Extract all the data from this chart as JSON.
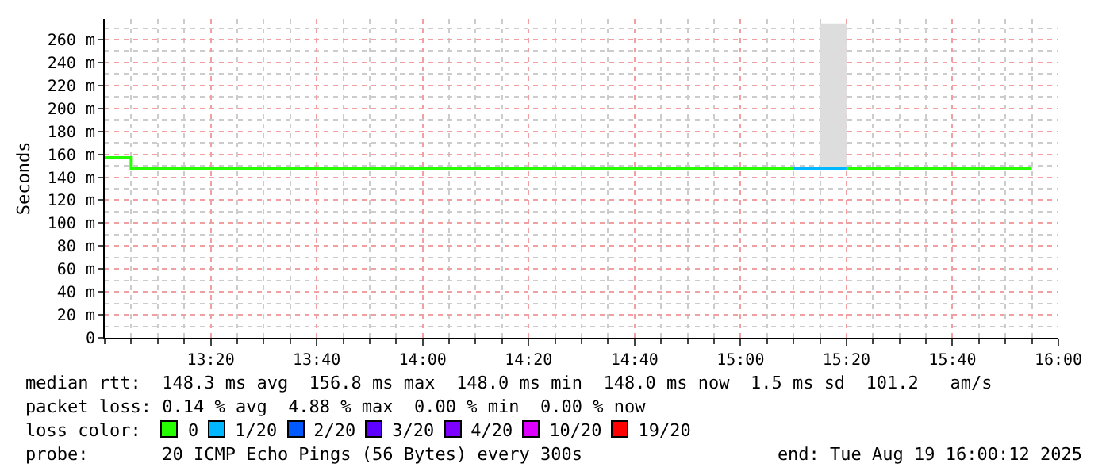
{
  "chart_data": {
    "type": "step",
    "ylabel": "Seconds",
    "legend_title": "loss color:",
    "legend": "bottom",
    "grid": true,
    "xlim": [
      "2025-08-19T13:00",
      "2025-08-19T16:00"
    ],
    "xticks": [
      {
        "value": "2025-08-19T13:20",
        "label": "13:20"
      },
      {
        "value": "2025-08-19T13:40",
        "label": "13:40"
      },
      {
        "value": "2025-08-19T14:00",
        "label": "14:00"
      },
      {
        "value": "2025-08-19T14:20",
        "label": "14:20"
      },
      {
        "value": "2025-08-19T14:40",
        "label": "14:40"
      },
      {
        "value": "2025-08-19T15:00",
        "label": "15:00"
      },
      {
        "value": "2025-08-19T15:20",
        "label": "15:20"
      },
      {
        "value": "2025-08-19T15:40",
        "label": "15:40"
      },
      {
        "value": "2025-08-19T16:00",
        "label": "16:00"
      }
    ],
    "ylim": [
      0,
      278
    ],
    "yticks": [
      0,
      {
        "value": 20,
        "label": "20 m"
      },
      {
        "value": 40,
        "label": "40 m"
      },
      {
        "value": 60,
        "label": "60 m"
      },
      {
        "value": 80,
        "label": "80 m"
      },
      {
        "value": 100,
        "label": "100 m"
      },
      {
        "value": 120,
        "label": "120 m"
      },
      {
        "value": 140,
        "label": "140 m"
      },
      {
        "value": 160,
        "label": "160 m"
      },
      {
        "value": 180,
        "label": "180 m"
      },
      {
        "value": 200,
        "label": "200 m"
      },
      {
        "value": 220,
        "label": "220 m"
      },
      {
        "value": 240,
        "label": "240 m"
      },
      {
        "value": 260,
        "label": "260 m"
      }
    ],
    "series": [
      {
        "name": "0",
        "color": "#26ff00",
        "x": [
          "2025-08-19T13:00",
          "2025-08-19T13:05",
          "2025-08-19T15:10",
          "2025-08-19T15:15",
          "2025-08-19T15:20",
          "2025-08-19T15:55"
        ],
        "values": [
          157,
          148,
          148,
          null,
          148,
          148
        ]
      },
      {
        "name": "1/20",
        "color": "#00b8ff",
        "x": [
          "2025-08-19T15:10",
          "2025-08-19T15:15",
          "2025-08-19T15:20"
        ],
        "values": [
          148,
          148,
          148
        ],
        "lower": [
          null,
          148,
          148
        ],
        "upper": [
          null,
          274,
          274
        ]
      },
      {
        "name": "2/20",
        "color": "#0059ff"
      },
      {
        "name": "3/20",
        "color": "#5e00ff"
      },
      {
        "name": "4/20",
        "color": "#7e00ff"
      },
      {
        "name": "10/20",
        "color": "#dd00ff"
      },
      {
        "name": "19/20",
        "color": "#ff0000"
      }
    ],
    "annotations": [
      "median rtt:  148.3 ms avg  156.8 ms max  148.0 ms min  148.0 ms now  1.5 ms sd  101.2   am/s",
      "packet loss: 0.14 % avg  4.88 % max  0.00 % min  0.00 % now",
      "probe:       20 ICMP Echo Pings (56 Bytes) every 300s",
      "end: Tue Aug 19 16:00:12 2025"
    ]
  }
}
